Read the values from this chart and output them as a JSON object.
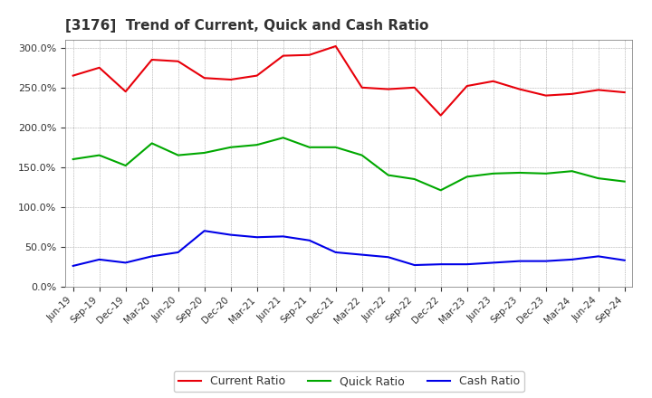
{
  "title": "[3176]  Trend of Current, Quick and Cash Ratio",
  "labels": [
    "Jun-19",
    "Sep-19",
    "Dec-19",
    "Mar-20",
    "Jun-20",
    "Sep-20",
    "Dec-20",
    "Mar-21",
    "Jun-21",
    "Sep-21",
    "Dec-21",
    "Mar-22",
    "Jun-22",
    "Sep-22",
    "Dec-22",
    "Mar-23",
    "Jun-23",
    "Sep-23",
    "Dec-23",
    "Mar-24",
    "Jun-24",
    "Sep-24"
  ],
  "current_ratio": [
    265,
    275,
    245,
    285,
    283,
    262,
    260,
    265,
    290,
    291,
    302,
    250,
    248,
    250,
    215,
    252,
    258,
    248,
    240,
    242,
    247,
    244
  ],
  "quick_ratio": [
    160,
    165,
    152,
    180,
    165,
    168,
    175,
    178,
    187,
    175,
    175,
    165,
    140,
    135,
    121,
    138,
    142,
    143,
    142,
    145,
    136,
    132
  ],
  "cash_ratio": [
    26,
    34,
    30,
    38,
    43,
    70,
    65,
    62,
    63,
    58,
    43,
    40,
    37,
    27,
    28,
    28,
    30,
    32,
    32,
    34,
    38,
    33
  ],
  "current_color": "#e8000a",
  "quick_color": "#00a800",
  "cash_color": "#0000e8",
  "ylim": [
    0,
    310
  ],
  "yticks": [
    0,
    50,
    100,
    150,
    200,
    250,
    300
  ],
  "background_color": "#ffffff",
  "plot_bg_color": "#ffffff",
  "grid_color": "#aaaaaa",
  "legend_labels": [
    "Current Ratio",
    "Quick Ratio",
    "Cash Ratio"
  ]
}
